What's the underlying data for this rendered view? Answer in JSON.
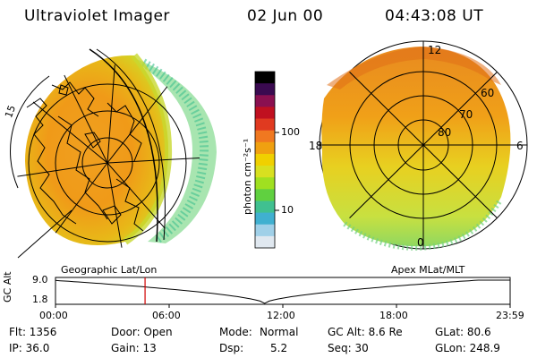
{
  "header": {
    "instrument": "Ultraviolet Imager",
    "date": "02 Jun 00",
    "time": "04:43:08 UT"
  },
  "left_panel": {
    "label": "Geographic Lat/Lon",
    "lon_tick": "15"
  },
  "right_panel": {
    "label": "Apex MLat/MLT",
    "mlt_labels": {
      "top": "12",
      "left": "18",
      "right": "6",
      "bottom": "0"
    },
    "lat_labels": [
      "60",
      "70",
      "80"
    ]
  },
  "colorbar": {
    "unit_label": "photon cm⁻²s⁻¹",
    "tick_100": "100",
    "tick_10": "10",
    "colors": [
      "#000000",
      "#3a0a50",
      "#8a1050",
      "#c01020",
      "#e03a20",
      "#f07820",
      "#f0a010",
      "#f0d000",
      "#d8e020",
      "#a0e020",
      "#60d040",
      "#40c090",
      "#40b0d0",
      "#a0d0e8",
      "#e0e8f0"
    ]
  },
  "altitude_strip": {
    "ylabel": "GC Alt",
    "y_top": "9.0",
    "y_bottom": "1.8",
    "x_ticks": [
      "00:00",
      "06:00",
      "12:00",
      "18:00",
      "23:59"
    ],
    "current_time_fraction": 0.197
  },
  "info": {
    "flt": "Flt: 1356",
    "ip": "IP: 36.0",
    "door": "Door: Open",
    "gain": "Gain: 13",
    "mode_label": "Mode:",
    "mode_value": "Normal",
    "dsp_label": "Dsp:",
    "dsp_value": "5.2",
    "gcalt": "GC Alt: 8.6 Re",
    "seq": "Seq: 30",
    "glat": "GLat:  80.6",
    "glon": "GLon: 248.9"
  }
}
